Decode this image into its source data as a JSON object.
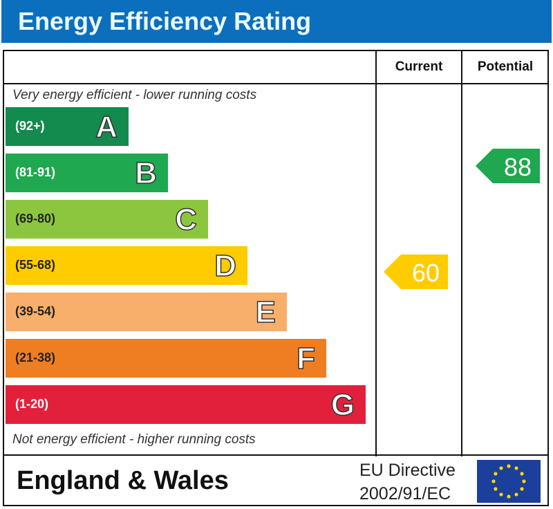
{
  "title": "Energy Efficiency Rating",
  "columns": {
    "current": "Current",
    "potential": "Potential"
  },
  "top_note": "Very energy efficient - lower running costs",
  "bottom_note": "Not energy efficient - higher running costs",
  "footer": {
    "region": "England & Wales",
    "directive_line1": "EU Directive",
    "directive_line2": "2002/91/EC",
    "flag_icon": "eu-flag-icon"
  },
  "chart_data": {
    "type": "bar",
    "title": "Energy Efficiency Rating",
    "categories": [
      "A",
      "B",
      "C",
      "D",
      "E",
      "F",
      "G"
    ],
    "ranges": [
      "(92+)",
      "(81-91)",
      "(69-80)",
      "(55-68)",
      "(39-54)",
      "(21-38)",
      "(1-20)"
    ],
    "colors": [
      "#138a4e",
      "#1fa84f",
      "#8cc63f",
      "#ffcc00",
      "#f7af6b",
      "#ef7d22",
      "#e3203b"
    ],
    "range_text_colors": [
      "#ffffff",
      "#ffffff",
      "#222222",
      "#222222",
      "#222222",
      "#222222",
      "#ffffff"
    ],
    "current": {
      "value": 60,
      "band": "D",
      "color": "#ffcc00"
    },
    "potential": {
      "value": 88,
      "band": "B",
      "color": "#1fa84f"
    }
  }
}
